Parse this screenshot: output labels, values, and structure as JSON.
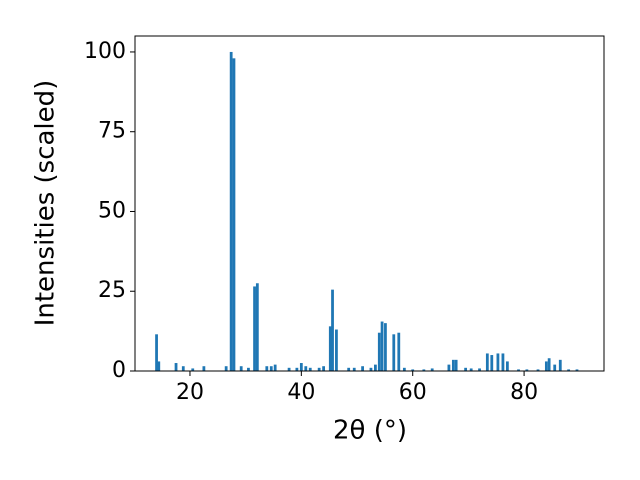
{
  "chart_data": {
    "type": "bar",
    "xlabel": "2θ (°)",
    "ylabel": "Intensities (scaled)",
    "x": [
      14.0,
      14.4,
      17.5,
      18.8,
      20.5,
      22.5,
      26.5,
      27.4,
      27.9,
      29.2,
      30.5,
      31.6,
      32.1,
      33.8,
      34.6,
      35.3,
      37.8,
      39.2,
      40.0,
      40.8,
      41.6,
      43.2,
      44.0,
      45.2,
      45.6,
      46.3,
      48.5,
      49.5,
      51.0,
      52.5,
      53.3,
      54.0,
      54.5,
      55.1,
      56.6,
      57.5,
      58.5,
      60.0,
      62.0,
      63.5,
      66.5,
      67.3,
      67.8,
      69.5,
      70.5,
      72.0,
      73.4,
      74.2,
      75.3,
      76.2,
      77.0,
      79.0,
      80.5,
      82.5,
      84.0,
      84.5,
      85.5,
      86.5,
      88.0,
      89.5
    ],
    "values": [
      11.5,
      3,
      2.5,
      1.5,
      0.8,
      1.5,
      1.5,
      100,
      98,
      1.5,
      1,
      26.5,
      27.5,
      1.5,
      1.5,
      2,
      1,
      1,
      2.5,
      1.5,
      1,
      1,
      1.5,
      14,
      25.5,
      13,
      1,
      1,
      1.5,
      1,
      2,
      12,
      15.5,
      15,
      11.5,
      12,
      1,
      0.5,
      0.5,
      0.8,
      2,
      3.5,
      3.5,
      1,
      0.8,
      0.8,
      5.5,
      5,
      5.5,
      5.5,
      3,
      0.5,
      0.5,
      0.5,
      3,
      4,
      2,
      3.5,
      0.5,
      0.5
    ],
    "color": "#1f77b4",
    "xlim": [
      10.13,
      94.35
    ],
    "ylim": [
      0,
      105
    ],
    "xticks": [
      20,
      40,
      60,
      80
    ],
    "yticks": [
      0,
      25,
      50,
      75,
      100
    ]
  }
}
